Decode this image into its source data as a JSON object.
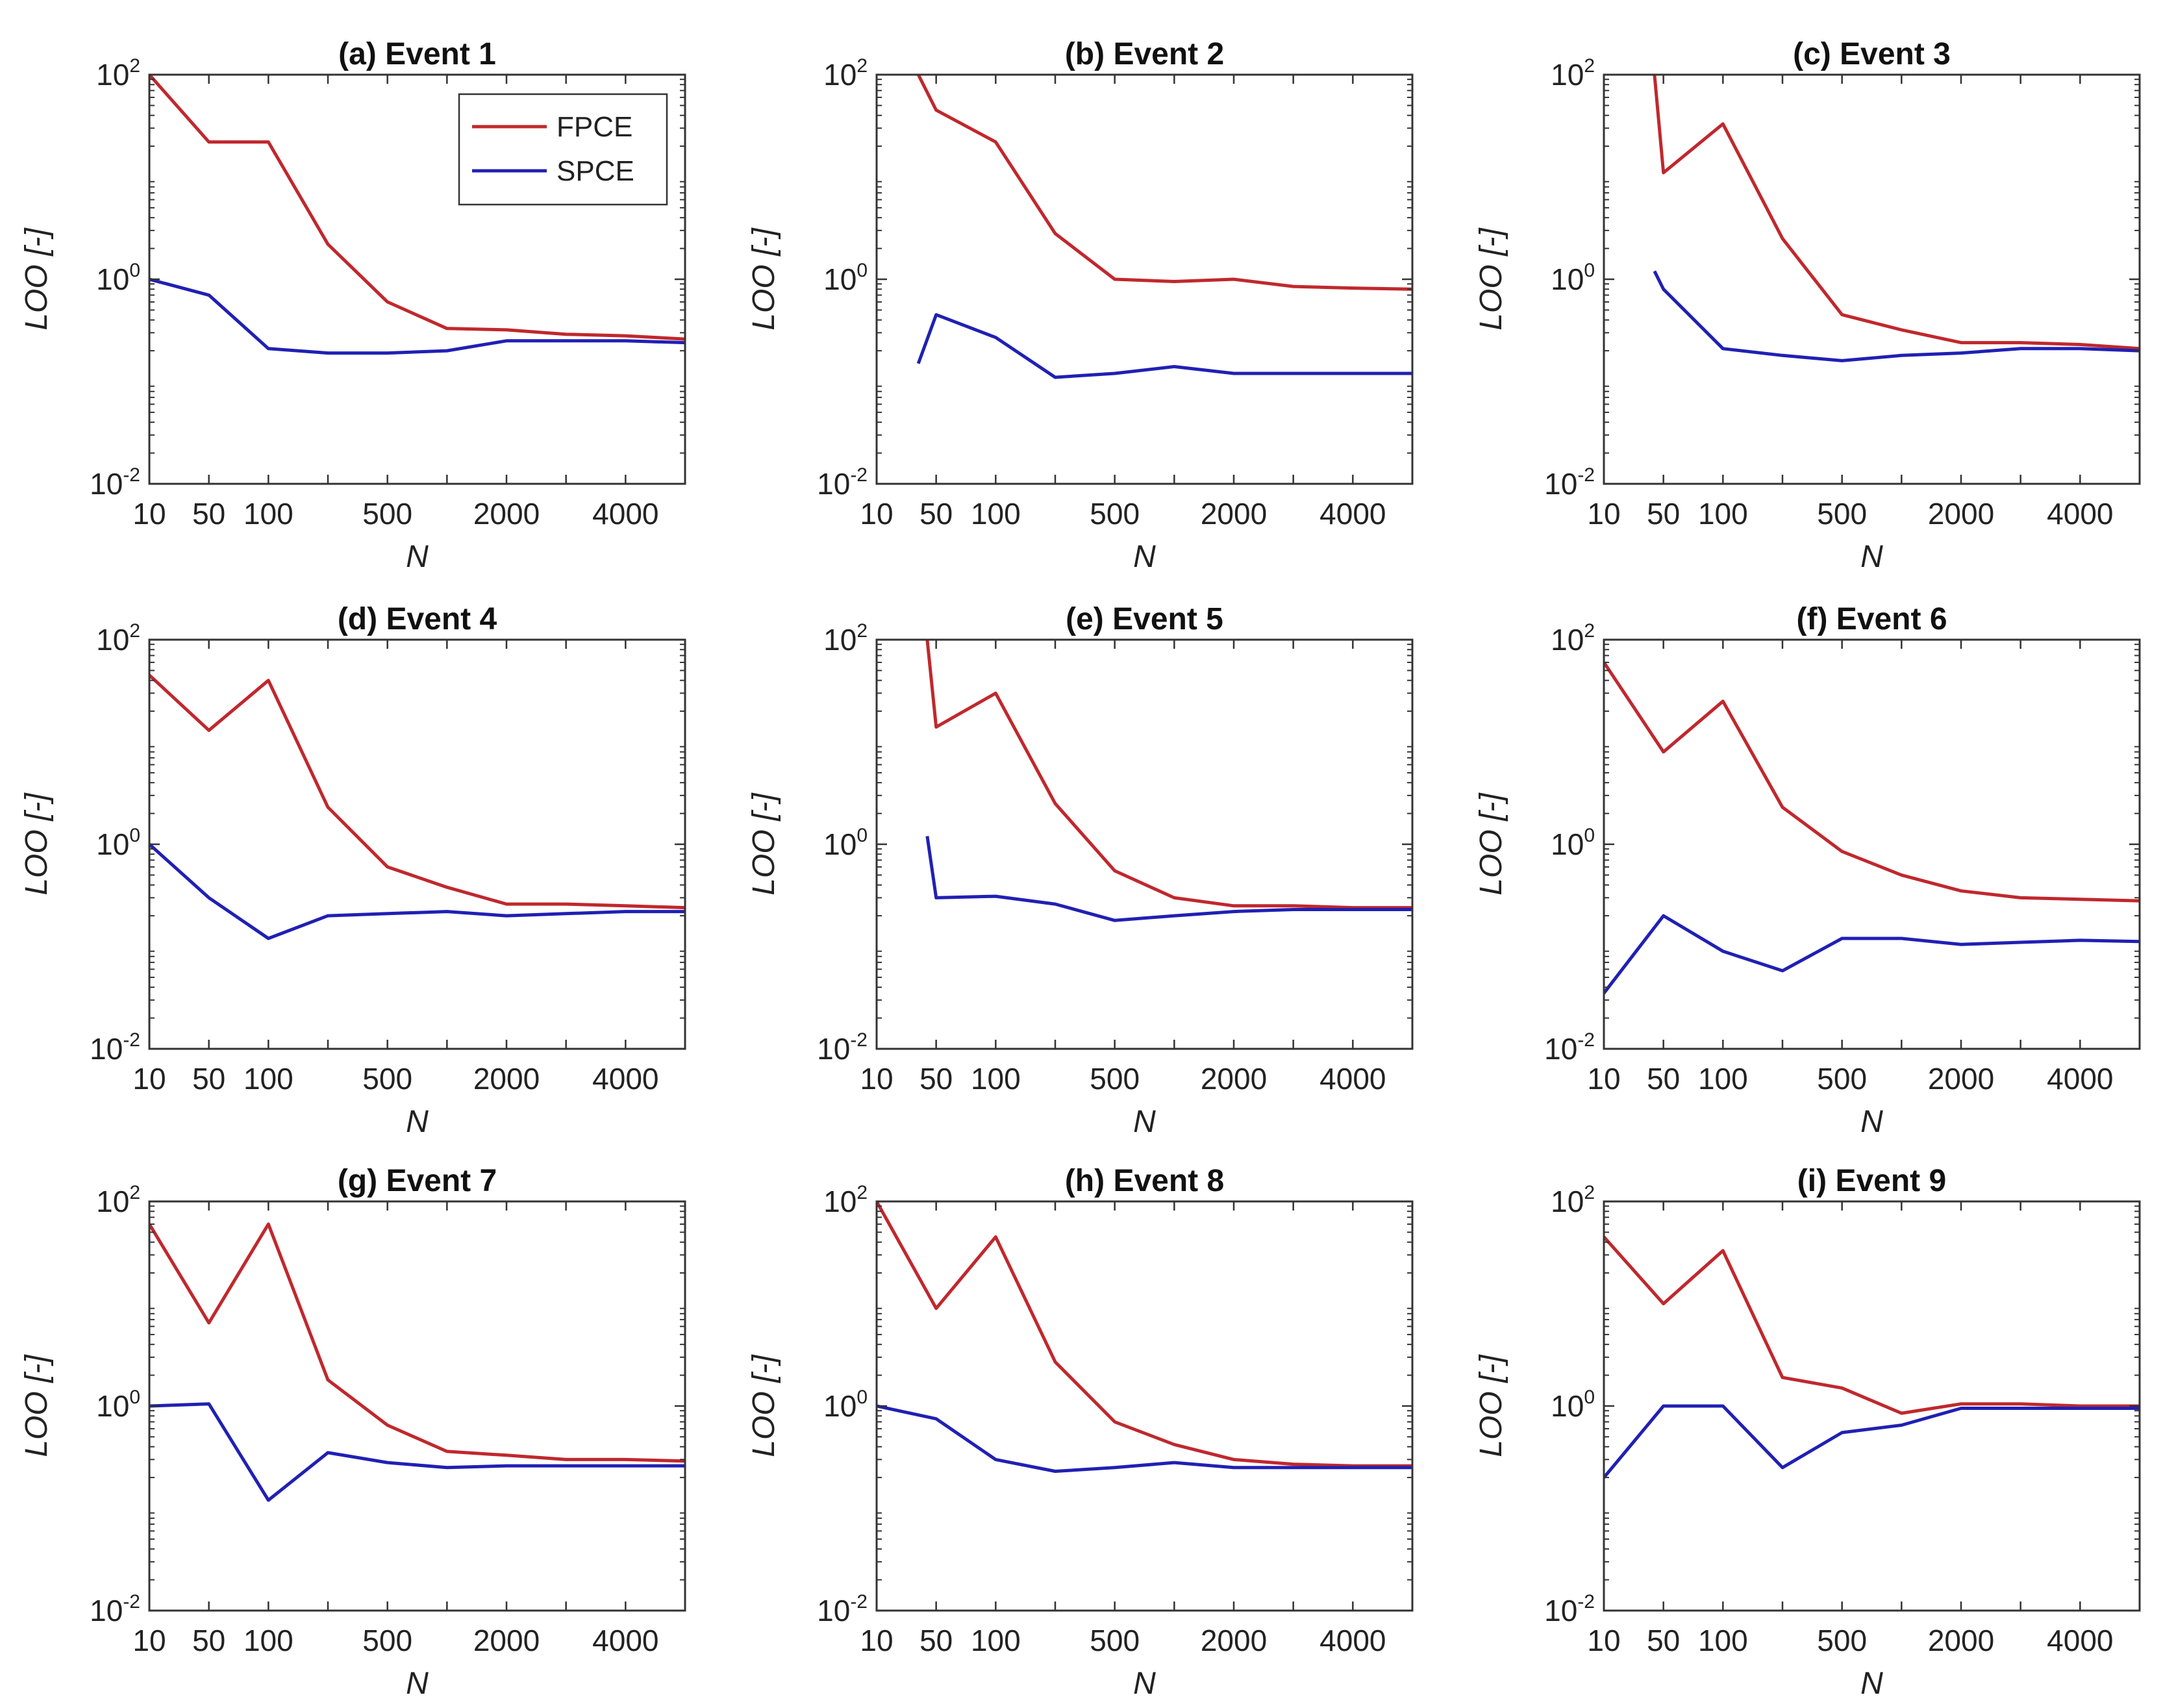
{
  "figure": {
    "colors": {
      "FPCE": "#c0282d",
      "SPCE": "#2020b4",
      "axis": "#333333",
      "background": "#ffffff"
    },
    "legend": {
      "location": "top-right",
      "panel": 0,
      "entries": [
        "FPCE",
        "SPCE"
      ]
    },
    "y_tick_mantissa": "10",
    "y_tick_exponents": [
      "-2",
      "0",
      "2"
    ]
  },
  "chart_data": [
    {
      "type": "line",
      "title": "(a) Event 1",
      "xlabel": "N",
      "ylabel": "LOO [-]",
      "yscale": "log",
      "ylim": [
        0.01,
        100
      ],
      "x_positions": [
        0,
        1,
        2,
        3,
        4,
        5,
        6,
        7,
        8,
        9
      ],
      "xlim": [
        0,
        9
      ],
      "xtick_labels": [
        "10",
        "50",
        "100",
        "500",
        "2000",
        "4000"
      ],
      "xtick_positions": [
        0,
        1,
        2,
        4,
        6,
        8
      ],
      "series": [
        {
          "name": "FPCE",
          "values": [
            120,
            22,
            22,
            2.2,
            0.6,
            0.33,
            0.32,
            0.29,
            0.28,
            0.26
          ]
        },
        {
          "name": "SPCE",
          "values": [
            1.0,
            0.7,
            0.21,
            0.19,
            0.19,
            0.2,
            0.25,
            0.25,
            0.25,
            0.24
          ]
        }
      ]
    },
    {
      "type": "line",
      "title": "(b) Event 2",
      "xlabel": "N",
      "ylabel": "LOO [-]",
      "yscale": "log",
      "ylim": [
        0.01,
        100
      ],
      "x_positions": [
        0.7,
        1,
        2,
        3,
        4,
        5,
        6,
        7,
        8,
        9
      ],
      "xlim": [
        0,
        9
      ],
      "xtick_labels": [
        "10",
        "50",
        "100",
        "500",
        "2000",
        "4000"
      ],
      "xtick_positions": [
        0,
        1,
        2,
        4,
        6,
        8
      ],
      "series": [
        {
          "name": "FPCE",
          "values": [
            100,
            45,
            22,
            2.8,
            1.0,
            0.95,
            1.0,
            0.85,
            0.82,
            0.8
          ]
        },
        {
          "name": "SPCE",
          "values": [
            0.15,
            0.45,
            0.27,
            0.11,
            0.12,
            0.14,
            0.12,
            0.12,
            0.12,
            0.12
          ]
        }
      ]
    },
    {
      "type": "line",
      "title": "(c) Event 3",
      "xlabel": "N",
      "ylabel": "LOO [-]",
      "yscale": "log",
      "ylim": [
        0.01,
        100
      ],
      "x_positions": [
        0.85,
        1,
        2,
        3,
        4,
        5,
        6,
        7,
        8,
        9
      ],
      "xlim": [
        0,
        9
      ],
      "xtick_labels": [
        "10",
        "50",
        "100",
        "500",
        "2000",
        "4000"
      ],
      "xtick_positions": [
        0,
        1,
        2,
        4,
        6,
        8
      ],
      "series": [
        {
          "name": "FPCE",
          "values": [
            100,
            11,
            33,
            2.5,
            0.45,
            0.32,
            0.24,
            0.24,
            0.23,
            0.21
          ]
        },
        {
          "name": "SPCE",
          "values": [
            1.2,
            0.8,
            0.21,
            0.18,
            0.16,
            0.18,
            0.19,
            0.21,
            0.21,
            0.2
          ]
        }
      ]
    },
    {
      "type": "line",
      "title": "(d) Event 4",
      "xlabel": "N",
      "ylabel": "LOO [-]",
      "yscale": "log",
      "ylim": [
        0.01,
        100
      ],
      "x_positions": [
        0,
        1,
        2,
        3,
        4,
        5,
        6,
        7,
        8,
        9
      ],
      "xlim": [
        0,
        9
      ],
      "xtick_labels": [
        "10",
        "50",
        "100",
        "500",
        "2000",
        "4000"
      ],
      "xtick_positions": [
        0,
        1,
        2,
        4,
        6,
        8
      ],
      "series": [
        {
          "name": "FPCE",
          "values": [
            45,
            13,
            40,
            2.3,
            0.6,
            0.38,
            0.26,
            0.26,
            0.25,
            0.24
          ]
        },
        {
          "name": "SPCE",
          "values": [
            1.0,
            0.3,
            0.12,
            0.2,
            0.21,
            0.22,
            0.2,
            0.21,
            0.22,
            0.22
          ]
        }
      ]
    },
    {
      "type": "line",
      "title": "(e) Event 5",
      "xlabel": "N",
      "ylabel": "LOO [-]",
      "yscale": "log",
      "ylim": [
        0.01,
        100
      ],
      "x_positions": [
        0.85,
        1,
        2,
        3,
        4,
        5,
        6,
        7,
        8,
        9
      ],
      "xlim": [
        0,
        9
      ],
      "xtick_labels": [
        "10",
        "50",
        "100",
        "500",
        "2000",
        "4000"
      ],
      "xtick_positions": [
        0,
        1,
        2,
        4,
        6,
        8
      ],
      "series": [
        {
          "name": "FPCE",
          "values": [
            100,
            14,
            30,
            2.5,
            0.55,
            0.3,
            0.25,
            0.25,
            0.24,
            0.24
          ]
        },
        {
          "name": "SPCE",
          "values": [
            1.2,
            0.3,
            0.31,
            0.26,
            0.18,
            0.2,
            0.22,
            0.23,
            0.23,
            0.23
          ]
        }
      ]
    },
    {
      "type": "line",
      "title": "(f) Event 6",
      "xlabel": "N",
      "ylabel": "LOO [-]",
      "yscale": "log",
      "ylim": [
        0.01,
        100
      ],
      "x_positions": [
        0,
        1,
        2,
        3,
        4,
        5,
        6,
        7,
        8,
        9
      ],
      "xlim": [
        0,
        9
      ],
      "xtick_labels": [
        "10",
        "50",
        "100",
        "500",
        "2000",
        "4000"
      ],
      "xtick_positions": [
        0,
        1,
        2,
        4,
        6,
        8
      ],
      "series": [
        {
          "name": "FPCE",
          "values": [
            60,
            8,
            25,
            2.3,
            0.85,
            0.5,
            0.35,
            0.3,
            0.29,
            0.28
          ]
        },
        {
          "name": "SPCE",
          "values": [
            0.035,
            0.2,
            0.09,
            0.058,
            0.12,
            0.12,
            0.105,
            0.11,
            0.115,
            0.112
          ]
        }
      ]
    },
    {
      "type": "line",
      "title": "(g) Event 7",
      "xlabel": "N",
      "ylabel": "LOO [-]",
      "yscale": "log",
      "ylim": [
        0.01,
        100
      ],
      "x_positions": [
        0,
        1,
        2,
        3,
        4,
        5,
        6,
        7,
        8,
        9
      ],
      "xlim": [
        0,
        9
      ],
      "xtick_labels": [
        "10",
        "50",
        "100",
        "500",
        "2000",
        "4000"
      ],
      "xtick_positions": [
        0,
        1,
        2,
        4,
        6,
        8
      ],
      "series": [
        {
          "name": "FPCE",
          "values": [
            60,
            6.5,
            60,
            1.8,
            0.65,
            0.36,
            0.33,
            0.3,
            0.3,
            0.29
          ]
        },
        {
          "name": "SPCE",
          "values": [
            1.0,
            1.05,
            0.12,
            0.35,
            0.28,
            0.25,
            0.26,
            0.26,
            0.26,
            0.26
          ]
        }
      ]
    },
    {
      "type": "line",
      "title": "(h) Event 8",
      "xlabel": "N",
      "ylabel": "LOO [-]",
      "yscale": "log",
      "ylim": [
        0.01,
        100
      ],
      "x_positions": [
        0,
        1,
        2,
        3,
        4,
        5,
        6,
        7,
        8,
        9
      ],
      "xlim": [
        0,
        9
      ],
      "xtick_labels": [
        "10",
        "50",
        "100",
        "500",
        "2000",
        "4000"
      ],
      "xtick_positions": [
        0,
        1,
        2,
        4,
        6,
        8
      ],
      "series": [
        {
          "name": "FPCE",
          "values": [
            110,
            9,
            45,
            2.7,
            0.7,
            0.42,
            0.3,
            0.27,
            0.26,
            0.26
          ]
        },
        {
          "name": "SPCE",
          "values": [
            1.0,
            0.75,
            0.3,
            0.23,
            0.25,
            0.28,
            0.25,
            0.25,
            0.25,
            0.25
          ]
        }
      ]
    },
    {
      "type": "line",
      "title": "(i) Event 9",
      "xlabel": "N",
      "ylabel": "LOO [-]",
      "yscale": "log",
      "ylim": [
        0.01,
        100
      ],
      "x_positions": [
        0,
        1,
        2,
        3,
        4,
        5,
        6,
        7,
        8,
        9
      ],
      "xlim": [
        0,
        9
      ],
      "xtick_labels": [
        "10",
        "50",
        "100",
        "500",
        "2000",
        "4000"
      ],
      "xtick_positions": [
        0,
        1,
        2,
        4,
        6,
        8
      ],
      "series": [
        {
          "name": "FPCE",
          "values": [
            45,
            10,
            33,
            1.9,
            1.5,
            0.85,
            1.05,
            1.05,
            1.0,
            1.0
          ]
        },
        {
          "name": "SPCE",
          "values": [
            0.2,
            1.0,
            1.0,
            0.25,
            0.55,
            0.65,
            0.95,
            0.95,
            0.95,
            0.95
          ]
        }
      ]
    }
  ]
}
